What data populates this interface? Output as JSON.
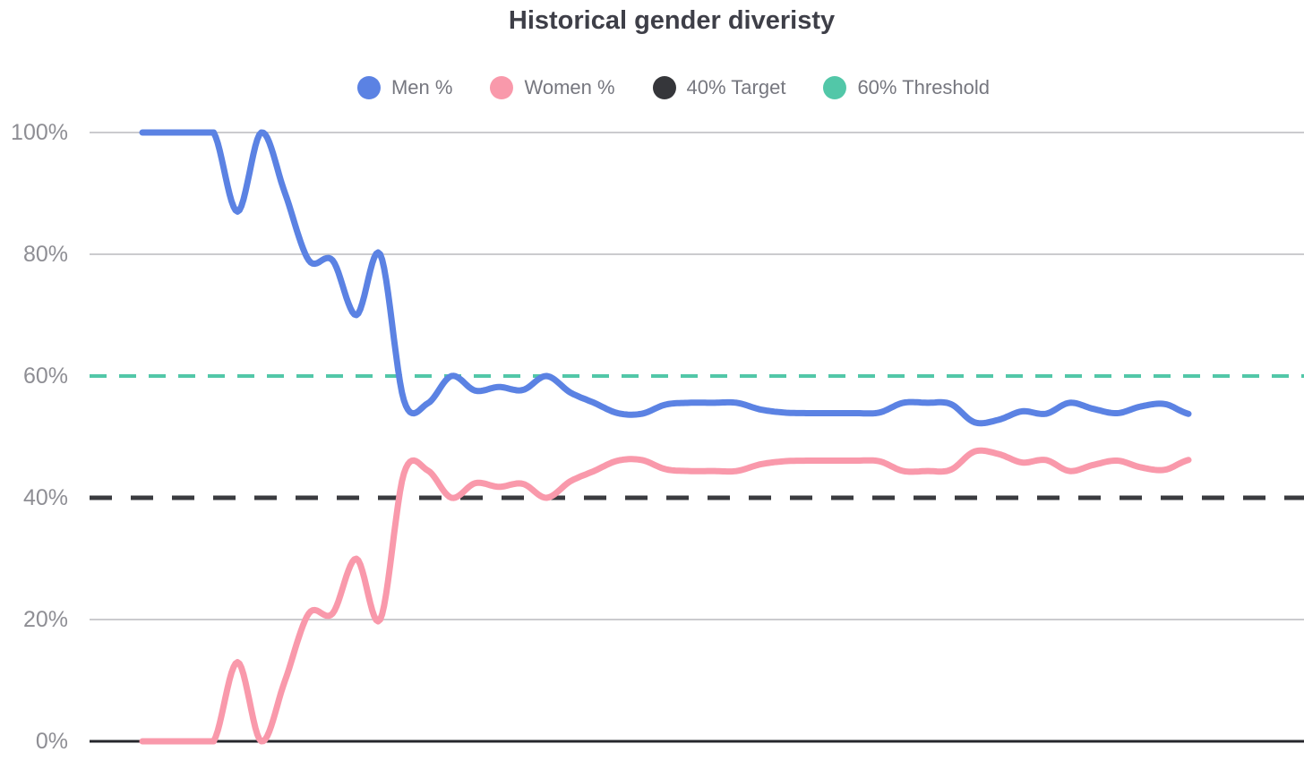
{
  "title": "Historical gender diveristy",
  "legend": {
    "items": [
      {
        "label": "Men %",
        "color": "#5b82e3"
      },
      {
        "label": "Women %",
        "color": "#f999ab"
      },
      {
        "label": "40% Target",
        "color": "#35363a"
      },
      {
        "label": "60% Threshold",
        "color": "#52c7a8"
      }
    ]
  },
  "y_axis": {
    "tick_labels": [
      "100%",
      "80%",
      "60%",
      "40%",
      "20%",
      "0%"
    ],
    "tick_values": [
      100,
      80,
      60,
      40,
      20,
      0
    ]
  },
  "chart_data": {
    "type": "line",
    "title": "Historical gender diveristy",
    "xlabel": "",
    "ylabel": "",
    "ylim": [
      0,
      100
    ],
    "grid": true,
    "legend_position": "top",
    "x_axis_labels_visible": false,
    "x": [
      0,
      1,
      2,
      3,
      4,
      5,
      6,
      7,
      8,
      9,
      10,
      11,
      12,
      13,
      14,
      15,
      16,
      17,
      18,
      19,
      20,
      21,
      22,
      23,
      24,
      25,
      26,
      27,
      28,
      29,
      30,
      31,
      32,
      33,
      34,
      35,
      36,
      37,
      38,
      39,
      40,
      41,
      42,
      43,
      44
    ],
    "series": [
      {
        "name": "Men %",
        "color": "#5b82e3",
        "values": [
          100,
          100,
          100,
          100,
          87,
          100,
          90,
          79,
          79,
          70,
          80,
          56,
          55.5,
          60,
          57.6,
          58.2,
          57.7,
          60,
          57.3,
          55.6,
          53.9,
          53.8,
          55.3,
          55.6,
          55.6,
          55.6,
          54.5,
          54,
          53.9,
          53.9,
          53.9,
          54,
          55.6,
          55.6,
          55.4,
          52.4,
          52.8,
          54.2,
          53.8,
          55.6,
          54.6,
          53.9,
          55,
          55.4,
          53.8
        ]
      },
      {
        "name": "Women %",
        "color": "#f999ab",
        "values": [
          0,
          0,
          0,
          0,
          13,
          0,
          10,
          21,
          21,
          30,
          20,
          44,
          44.5,
          40,
          42.4,
          41.8,
          42.3,
          40,
          42.7,
          44.4,
          46.1,
          46.2,
          44.7,
          44.4,
          44.4,
          44.4,
          45.5,
          46,
          46.1,
          46.1,
          46.1,
          46,
          44.4,
          44.4,
          44.6,
          47.6,
          47.2,
          45.8,
          46.2,
          44.4,
          45.4,
          46.1,
          45,
          44.6,
          46.2
        ]
      }
    ],
    "reference_lines": [
      {
        "name": "40% Target",
        "value": 40,
        "color": "#3a3b3f",
        "style": "dashed"
      },
      {
        "name": "60% Threshold",
        "value": 60,
        "color": "#52c7a8",
        "style": "dashed"
      }
    ]
  },
  "colors": {
    "background": "#ffffff",
    "gridline": "#cbcbce",
    "axis_line": "#26272c",
    "axis_label": "#8e8e94",
    "legend_label": "#76777f",
    "title": "#3e3f48"
  }
}
